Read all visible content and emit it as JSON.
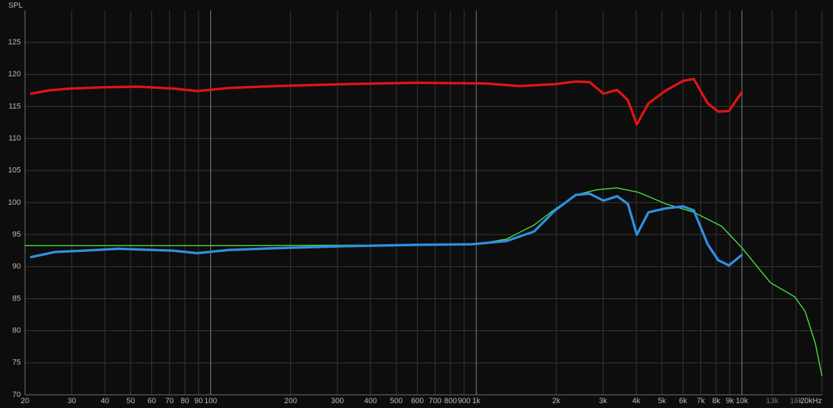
{
  "chart_data": {
    "type": "line",
    "y_label": "SPL",
    "xscale": "log",
    "grid": true,
    "xlim": [
      20,
      20000
    ],
    "ylim": [
      70,
      130
    ],
    "yticks": [
      70,
      75,
      80,
      85,
      90,
      95,
      100,
      105,
      110,
      115,
      120,
      125
    ],
    "xticks": [
      20,
      30,
      40,
      50,
      60,
      70,
      80,
      90,
      100,
      200,
      300,
      400,
      500,
      600,
      700,
      800,
      900,
      {
        "value": 1000,
        "label": "1k"
      },
      {
        "value": 2000,
        "label": "2k"
      },
      {
        "value": 3000,
        "label": "3k"
      },
      {
        "value": 4000,
        "label": "4k"
      },
      {
        "value": 5000,
        "label": "5k"
      },
      {
        "value": 6000,
        "label": "6k"
      },
      {
        "value": 7000,
        "label": "7k"
      },
      {
        "value": 8000,
        "label": "8k"
      },
      {
        "value": 9000,
        "label": "9k"
      },
      {
        "value": 10000,
        "label": "10k"
      },
      {
        "value": 13000,
        "label": "13k"
      },
      {
        "value": 16000,
        "label": "16k"
      },
      {
        "value": 20000,
        "label": "20kHz"
      }
    ],
    "series": [
      {
        "color": "#e01414",
        "x": [
          21.1,
          24.5,
          29.4,
          39.6,
          53.4,
          72.3,
          89.1,
          117,
          178,
          323,
          592,
          1080,
          1460,
          1980,
          2370,
          2670,
          3010,
          3390,
          3720,
          4020,
          4450,
          5170,
          6000,
          6590,
          7430,
          8150,
          8930,
          9970
        ],
        "values": [
          117.0,
          117.5,
          117.8,
          118.0,
          118.1,
          117.8,
          117.4,
          117.9,
          118.2,
          118.5,
          118.7,
          118.6,
          118.2,
          118.5,
          118.9,
          118.8,
          117.0,
          117.6,
          116.0,
          112.2,
          115.5,
          117.5,
          119.0,
          119.3,
          115.5,
          114.2,
          114.3,
          117.2
        ]
      },
      {
        "color": "#4cdc3c",
        "x": [
          20,
          100,
          963,
          1300,
          1650,
          1980,
          2370,
          2840,
          3390,
          4080,
          5170,
          6590,
          8400,
          9970,
          12800,
          15800,
          17300,
          18900,
          20000
        ],
        "values": [
          93.3,
          93.3,
          93.4,
          94.3,
          96.5,
          99.0,
          101.2,
          102.0,
          102.3,
          101.6,
          99.8,
          98.5,
          96.3,
          93.0,
          87.5,
          85.3,
          83.0,
          78.0,
          73.0
        ]
      },
      {
        "color": "#2f8fe0",
        "x": [
          21.1,
          26.0,
          33.1,
          44.9,
          72.3,
          89.1,
          117,
          178,
          323,
          592,
          963,
          1300,
          1650,
          1980,
          2370,
          2670,
          3010,
          3390,
          3720,
          4020,
          4450,
          5170,
          6000,
          6590,
          7430,
          8150,
          8930,
          9970
        ],
        "values": [
          91.5,
          92.3,
          92.5,
          92.8,
          92.5,
          92.1,
          92.6,
          92.9,
          93.2,
          93.4,
          93.5,
          94.0,
          95.5,
          98.8,
          101.2,
          101.4,
          100.3,
          101.0,
          99.8,
          95.0,
          98.5,
          99.1,
          99.4,
          98.8,
          93.5,
          91.0,
          90.2,
          91.8
        ]
      }
    ]
  }
}
